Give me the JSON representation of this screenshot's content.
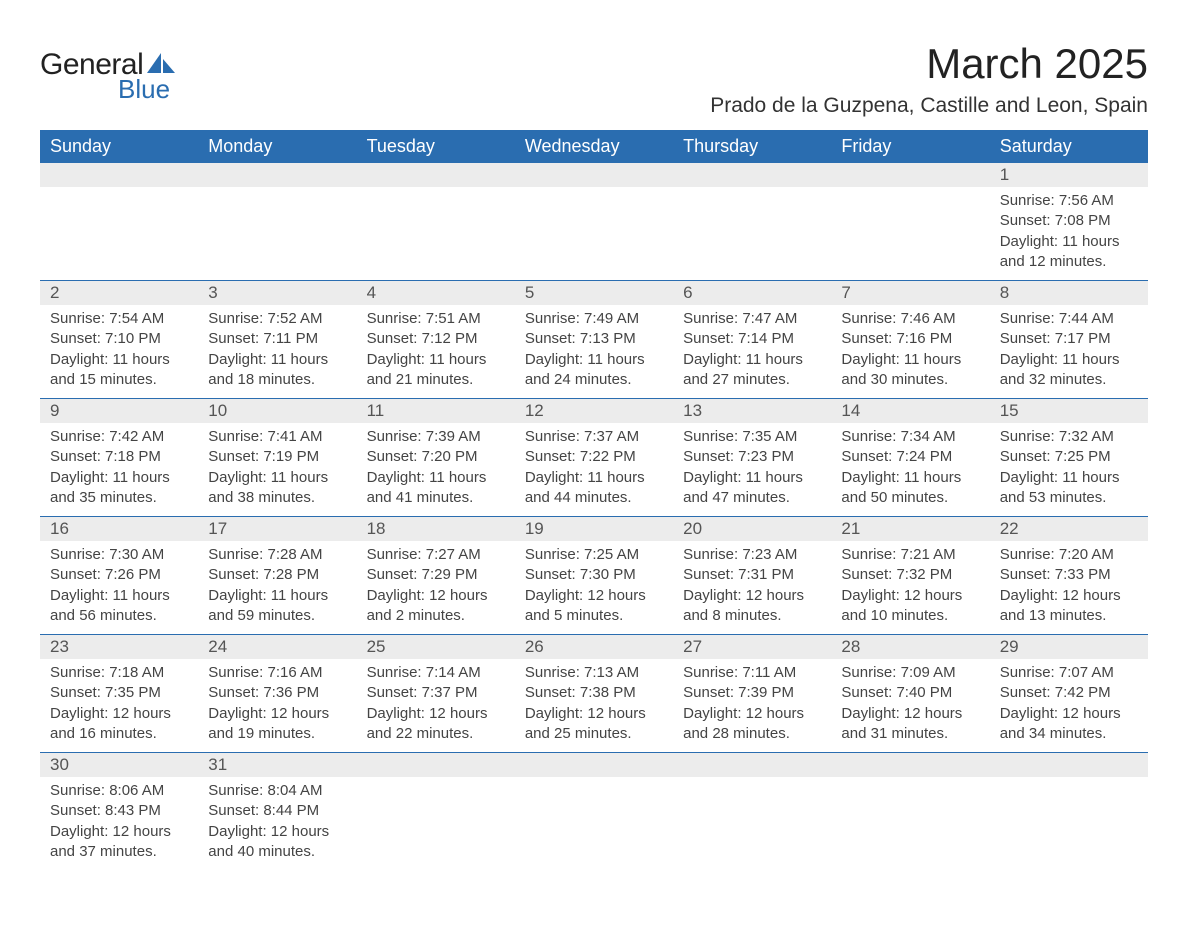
{
  "logo": {
    "text_general": "General",
    "text_blue": "Blue",
    "shape_color": "#2a6db0"
  },
  "title": "March 2025",
  "location": "Prado de la Guzpena, Castille and Leon, Spain",
  "colors": {
    "header_bg": "#2a6db0",
    "header_text": "#ffffff",
    "daynum_bg": "#ececec",
    "border": "#2a6db0",
    "body_text": "#444"
  },
  "weekdays": [
    "Sunday",
    "Monday",
    "Tuesday",
    "Wednesday",
    "Thursday",
    "Friday",
    "Saturday"
  ],
  "weeks": [
    [
      null,
      null,
      null,
      null,
      null,
      null,
      {
        "n": "1",
        "sr": "7:56 AM",
        "ss": "7:08 PM",
        "dl": "11 hours and 12 minutes."
      }
    ],
    [
      {
        "n": "2",
        "sr": "7:54 AM",
        "ss": "7:10 PM",
        "dl": "11 hours and 15 minutes."
      },
      {
        "n": "3",
        "sr": "7:52 AM",
        "ss": "7:11 PM",
        "dl": "11 hours and 18 minutes."
      },
      {
        "n": "4",
        "sr": "7:51 AM",
        "ss": "7:12 PM",
        "dl": "11 hours and 21 minutes."
      },
      {
        "n": "5",
        "sr": "7:49 AM",
        "ss": "7:13 PM",
        "dl": "11 hours and 24 minutes."
      },
      {
        "n": "6",
        "sr": "7:47 AM",
        "ss": "7:14 PM",
        "dl": "11 hours and 27 minutes."
      },
      {
        "n": "7",
        "sr": "7:46 AM",
        "ss": "7:16 PM",
        "dl": "11 hours and 30 minutes."
      },
      {
        "n": "8",
        "sr": "7:44 AM",
        "ss": "7:17 PM",
        "dl": "11 hours and 32 minutes."
      }
    ],
    [
      {
        "n": "9",
        "sr": "7:42 AM",
        "ss": "7:18 PM",
        "dl": "11 hours and 35 minutes."
      },
      {
        "n": "10",
        "sr": "7:41 AM",
        "ss": "7:19 PM",
        "dl": "11 hours and 38 minutes."
      },
      {
        "n": "11",
        "sr": "7:39 AM",
        "ss": "7:20 PM",
        "dl": "11 hours and 41 minutes."
      },
      {
        "n": "12",
        "sr": "7:37 AM",
        "ss": "7:22 PM",
        "dl": "11 hours and 44 minutes."
      },
      {
        "n": "13",
        "sr": "7:35 AM",
        "ss": "7:23 PM",
        "dl": "11 hours and 47 minutes."
      },
      {
        "n": "14",
        "sr": "7:34 AM",
        "ss": "7:24 PM",
        "dl": "11 hours and 50 minutes."
      },
      {
        "n": "15",
        "sr": "7:32 AM",
        "ss": "7:25 PM",
        "dl": "11 hours and 53 minutes."
      }
    ],
    [
      {
        "n": "16",
        "sr": "7:30 AM",
        "ss": "7:26 PM",
        "dl": "11 hours and 56 minutes."
      },
      {
        "n": "17",
        "sr": "7:28 AM",
        "ss": "7:28 PM",
        "dl": "11 hours and 59 minutes."
      },
      {
        "n": "18",
        "sr": "7:27 AM",
        "ss": "7:29 PM",
        "dl": "12 hours and 2 minutes."
      },
      {
        "n": "19",
        "sr": "7:25 AM",
        "ss": "7:30 PM",
        "dl": "12 hours and 5 minutes."
      },
      {
        "n": "20",
        "sr": "7:23 AM",
        "ss": "7:31 PM",
        "dl": "12 hours and 8 minutes."
      },
      {
        "n": "21",
        "sr": "7:21 AM",
        "ss": "7:32 PM",
        "dl": "12 hours and 10 minutes."
      },
      {
        "n": "22",
        "sr": "7:20 AM",
        "ss": "7:33 PM",
        "dl": "12 hours and 13 minutes."
      }
    ],
    [
      {
        "n": "23",
        "sr": "7:18 AM",
        "ss": "7:35 PM",
        "dl": "12 hours and 16 minutes."
      },
      {
        "n": "24",
        "sr": "7:16 AM",
        "ss": "7:36 PM",
        "dl": "12 hours and 19 minutes."
      },
      {
        "n": "25",
        "sr": "7:14 AM",
        "ss": "7:37 PM",
        "dl": "12 hours and 22 minutes."
      },
      {
        "n": "26",
        "sr": "7:13 AM",
        "ss": "7:38 PM",
        "dl": "12 hours and 25 minutes."
      },
      {
        "n": "27",
        "sr": "7:11 AM",
        "ss": "7:39 PM",
        "dl": "12 hours and 28 minutes."
      },
      {
        "n": "28",
        "sr": "7:09 AM",
        "ss": "7:40 PM",
        "dl": "12 hours and 31 minutes."
      },
      {
        "n": "29",
        "sr": "7:07 AM",
        "ss": "7:42 PM",
        "dl": "12 hours and 34 minutes."
      }
    ],
    [
      {
        "n": "30",
        "sr": "8:06 AM",
        "ss": "8:43 PM",
        "dl": "12 hours and 37 minutes."
      },
      {
        "n": "31",
        "sr": "8:04 AM",
        "ss": "8:44 PM",
        "dl": "12 hours and 40 minutes."
      },
      null,
      null,
      null,
      null,
      null
    ]
  ],
  "labels": {
    "sunrise": "Sunrise: ",
    "sunset": "Sunset: ",
    "daylight": "Daylight: "
  }
}
